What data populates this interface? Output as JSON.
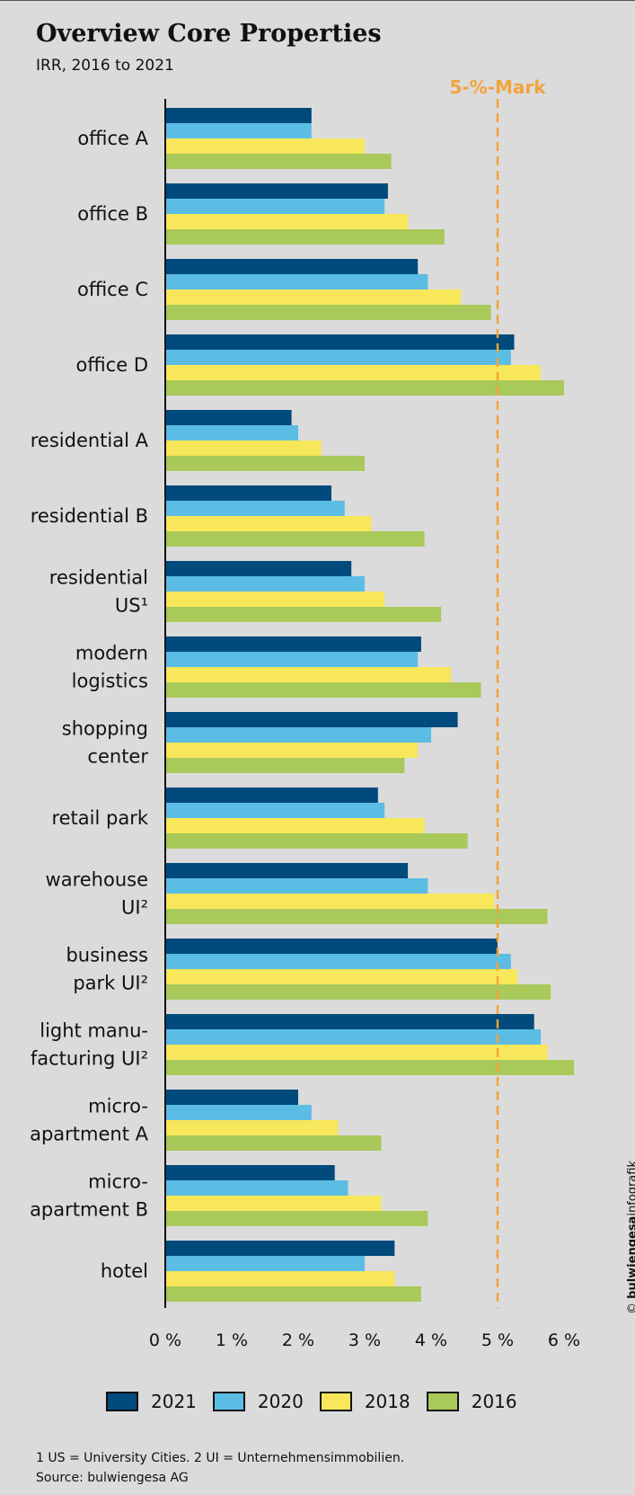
{
  "title": "Overview Core Properties",
  "subtitle": "IRR, 2016 to 2021",
  "chart_data": {
    "type": "bar",
    "orientation": "horizontal",
    "title": "Overview Core Properties",
    "subtitle": "IRR, 2016 to 2021",
    "categories": [
      [
        "office A"
      ],
      [
        "office B"
      ],
      [
        "office C"
      ],
      [
        "office D"
      ],
      [
        "residential A"
      ],
      [
        "residential B"
      ],
      [
        "residential",
        "US¹"
      ],
      [
        "modern",
        "logistics"
      ],
      [
        "shopping",
        "center"
      ],
      [
        "retail park"
      ],
      [
        "warehouse",
        "UI²"
      ],
      [
        "business",
        "park UI²"
      ],
      [
        "light manu-",
        "facturing UI²"
      ],
      [
        "micro-",
        "apartment A"
      ],
      [
        "micro-",
        "apartment B"
      ],
      [
        "hotel"
      ]
    ],
    "series": [
      {
        "name": "2021",
        "color": "#004a7c",
        "values": [
          2.2,
          3.35,
          3.8,
          5.25,
          1.9,
          2.5,
          2.8,
          3.85,
          4.4,
          3.2,
          3.65,
          5.0,
          5.55,
          2.0,
          2.55,
          3.45
        ]
      },
      {
        "name": "2020",
        "color": "#5bbde3",
        "values": [
          2.2,
          3.3,
          3.95,
          5.2,
          2.0,
          2.7,
          3.0,
          3.8,
          4.0,
          3.3,
          3.95,
          5.2,
          5.65,
          2.2,
          2.75,
          3.0
        ]
      },
      {
        "name": "2018",
        "color": "#f8e75a",
        "values": [
          3.0,
          3.65,
          4.45,
          5.65,
          2.35,
          3.1,
          3.3,
          4.3,
          3.8,
          3.9,
          4.95,
          5.3,
          5.75,
          2.6,
          3.25,
          3.45
        ]
      },
      {
        "name": "2016",
        "color": "#a9c95a",
        "values": [
          3.4,
          4.2,
          4.9,
          6.0,
          3.0,
          3.9,
          4.15,
          4.75,
          3.6,
          4.55,
          5.75,
          5.8,
          6.15,
          3.25,
          3.95,
          3.85
        ]
      }
    ],
    "xlim": [
      0,
      6
    ],
    "xticks": [
      "0 %",
      "1 %",
      "2 %",
      "3 %",
      "4 %",
      "5 %",
      "6 %"
    ],
    "reference_line": {
      "value": 5,
      "label": "5-%-Mark",
      "color": "#f2a33c",
      "style": "dashed"
    },
    "legend_position": "bottom"
  },
  "footnote": "1 US = University Cities. 2 UI = Unternehmensimmobilien.",
  "source": "Source: bulwiengesa AG",
  "credit": {
    "symbol": "©",
    "brand": "bulwiengesa",
    "suffix": "infografik"
  }
}
